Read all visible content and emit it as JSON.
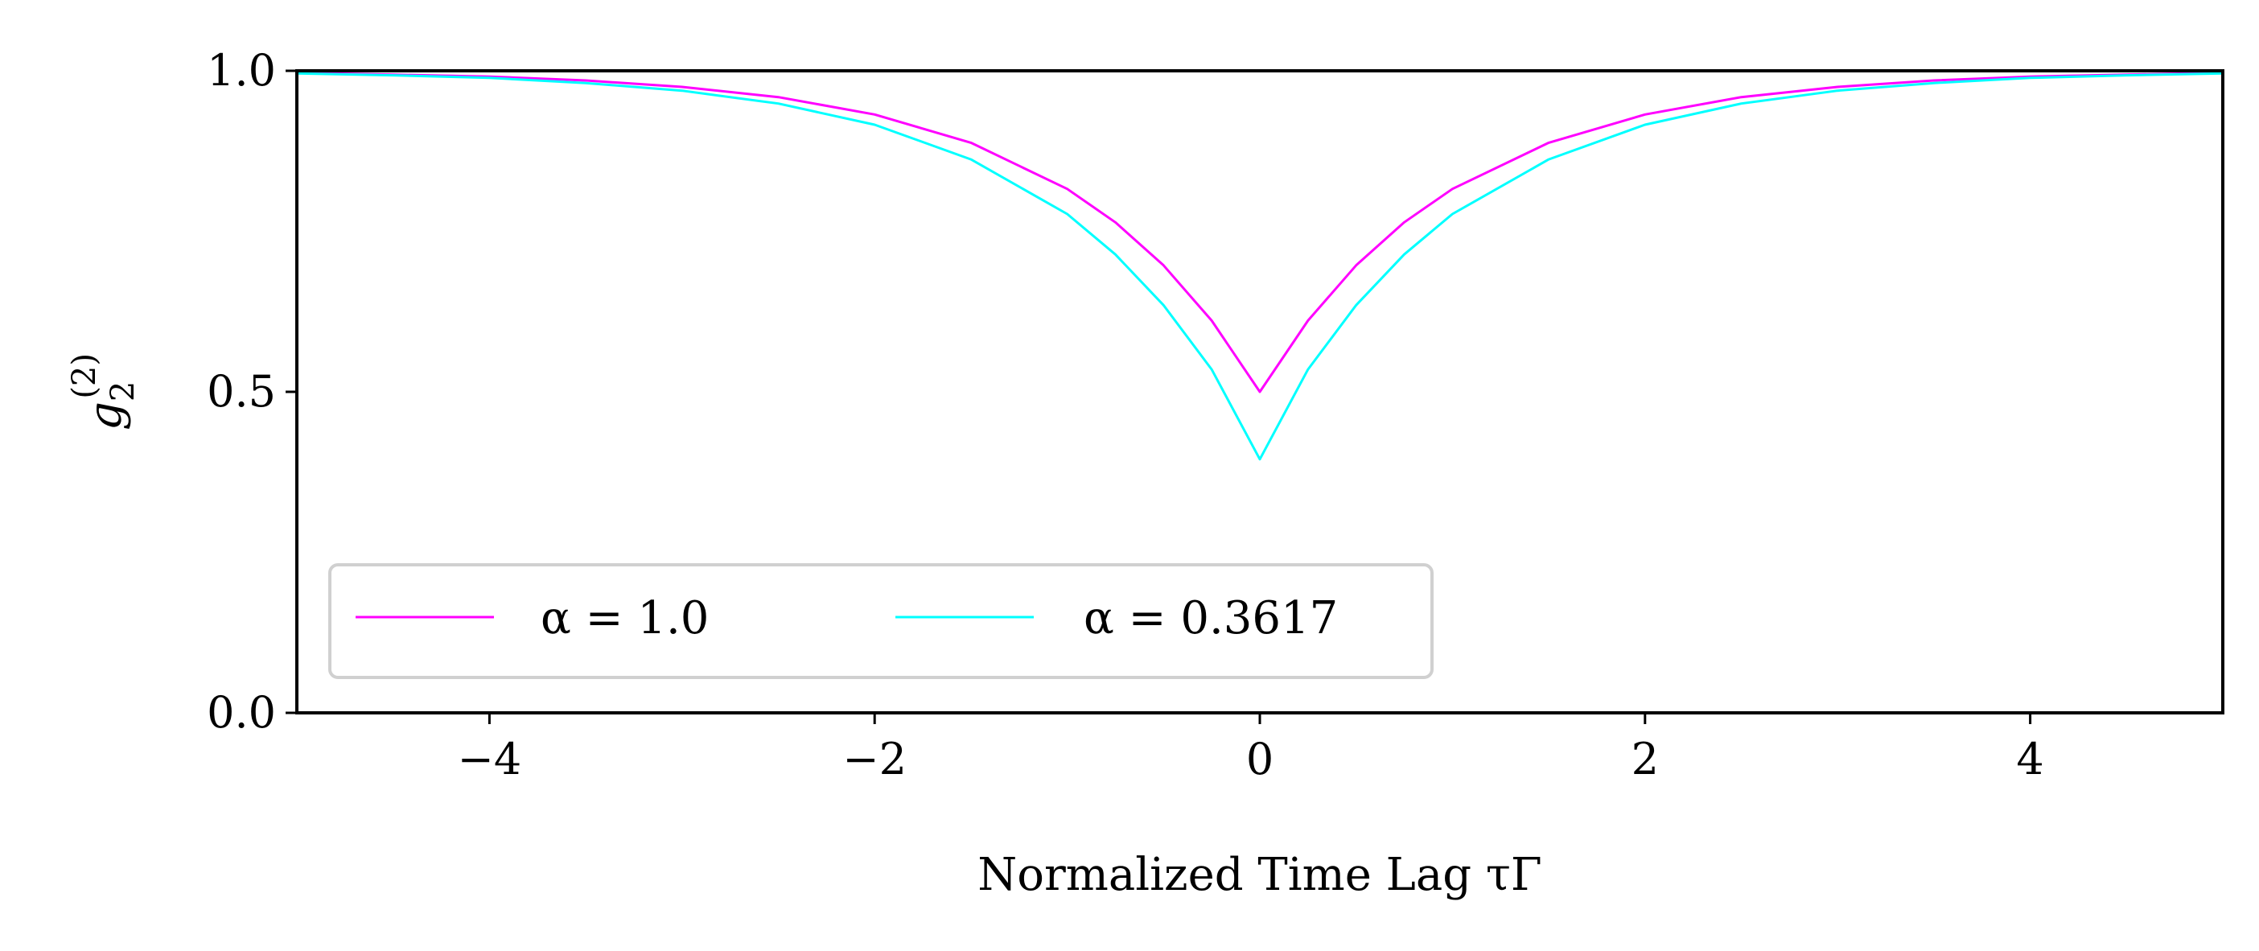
{
  "chart_data": {
    "type": "line",
    "xlabel": "Normalized Time Lag τΓ",
    "ylabel_base": "g",
    "ylabel_sub": "2",
    "ylabel_sup": "(2)",
    "xlim": [
      -5,
      5
    ],
    "ylim": [
      0.0,
      1.0
    ],
    "xticks": [
      -4,
      -2,
      0,
      2,
      4
    ],
    "xtick_labels": [
      "−4",
      "−2",
      "0",
      "2",
      "4"
    ],
    "yticks": [
      0.0,
      0.5,
      1.0
    ],
    "ytick_labels": [
      "0.0",
      "0.5",
      "1.0"
    ],
    "grid": false,
    "legend_position": "lower-left",
    "series": [
      {
        "name": "α = 1.0",
        "color": "#ff00ff",
        "x": [
          -5,
          -4.5,
          -4,
          -3.5,
          -3,
          -2.5,
          -2,
          -1.5,
          -1,
          -0.75,
          -0.5,
          -0.25,
          0,
          0.25,
          0.5,
          0.75,
          1,
          1.5,
          2,
          2.5,
          3,
          3.5,
          4,
          4.5,
          5
        ],
        "y": [
          0.997,
          0.994,
          0.991,
          0.985,
          0.975,
          0.959,
          0.932,
          0.888,
          0.816,
          0.764,
          0.697,
          0.611,
          0.5,
          0.611,
          0.697,
          0.764,
          0.816,
          0.888,
          0.932,
          0.959,
          0.975,
          0.985,
          0.991,
          0.994,
          0.997
        ]
      },
      {
        "name": "α = 0.3617",
        "color": "#00ffff",
        "x": [
          -5,
          -4.5,
          -4,
          -3.5,
          -3,
          -2.5,
          -2,
          -1.5,
          -1,
          -0.75,
          -0.5,
          -0.25,
          0,
          0.25,
          0.5,
          0.75,
          1,
          1.5,
          2,
          2.5,
          3,
          3.5,
          4,
          4.5,
          5
        ],
        "y": [
          0.996,
          0.993,
          0.989,
          0.981,
          0.969,
          0.949,
          0.916,
          0.862,
          0.777,
          0.714,
          0.635,
          0.535,
          0.395,
          0.535,
          0.635,
          0.714,
          0.777,
          0.862,
          0.916,
          0.949,
          0.969,
          0.981,
          0.989,
          0.993,
          0.996
        ]
      }
    ]
  }
}
